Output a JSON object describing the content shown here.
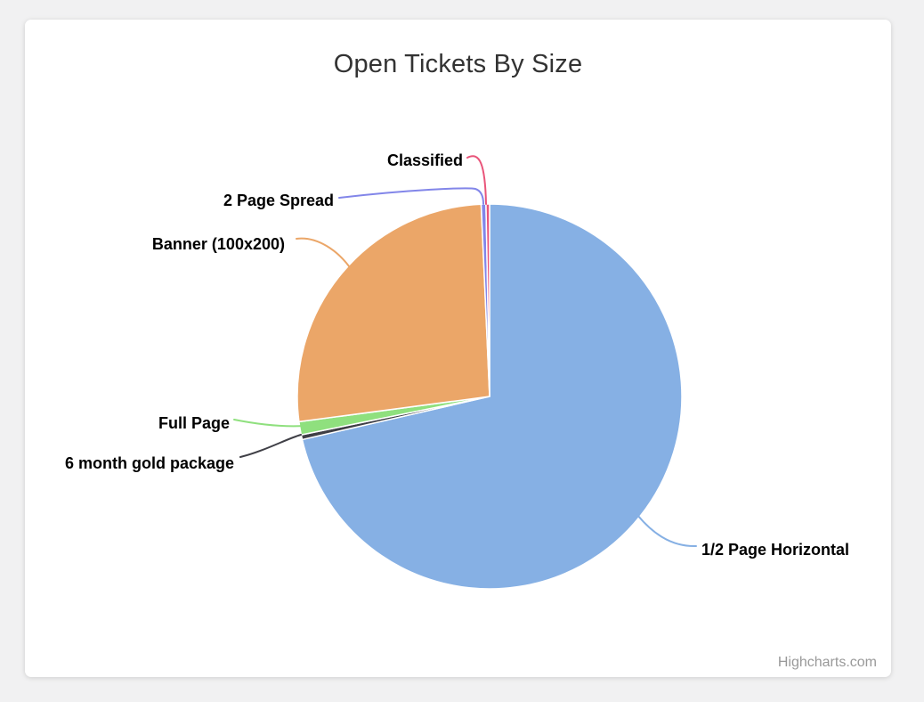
{
  "page": {
    "background_color": "#f1f1f2",
    "card_color": "#ffffff"
  },
  "chart": {
    "title": "Open Tickets By Size",
    "title_color": "#333333",
    "credit": "Highcharts.com",
    "credit_color": "#999999"
  },
  "chart_data": {
    "type": "pie",
    "title": "Open Tickets By Size",
    "legend": "none",
    "labels_style": "outside labels with curved connector lines, bold black text",
    "start_angle_deg": 0,
    "direction": "clockwise",
    "values_are": "percent share estimated from slice angles (no numbers printed on chart)",
    "slices": [
      {
        "label": "1/2 Page Horizontal",
        "value": 71.4,
        "color": "#86b0e4"
      },
      {
        "label": "6 month gold package",
        "value": 0.4,
        "color": "#3f3f46"
      },
      {
        "label": "Full Page",
        "value": 1.1,
        "color": "#8fe07e"
      },
      {
        "label": "Banner (100x200)",
        "value": 26.4,
        "color": "#eba668"
      },
      {
        "label": "2 Page Spread",
        "value": 0.4,
        "color": "#8286e9"
      },
      {
        "label": "Classified",
        "value": 0.3,
        "color": "#e9557a"
      }
    ]
  }
}
